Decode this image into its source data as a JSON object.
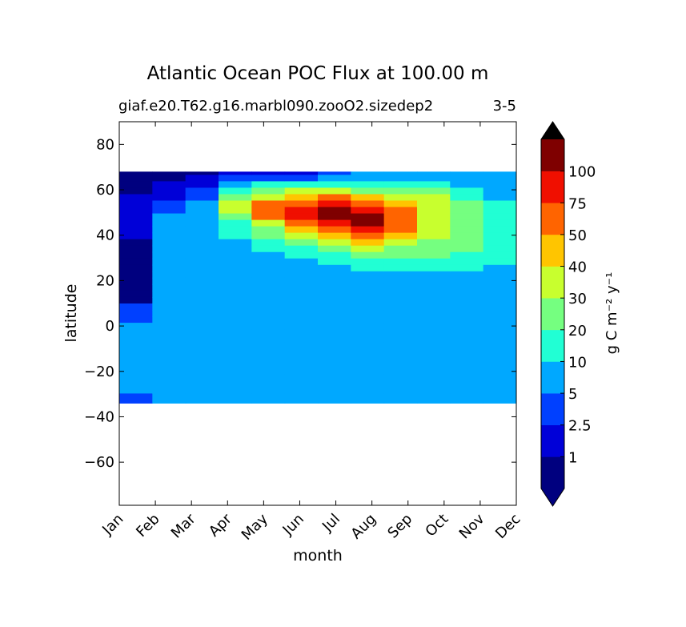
{
  "chart_data": {
    "type": "heatmap",
    "title": "Atlantic Ocean POC Flux at 100.00 m",
    "subtitle_left": "giaf.e20.T62.g16.marbl090.zooO2.sizedep2",
    "subtitle_right": "3-5",
    "xlabel": "month",
    "ylabel": "latitude",
    "x_tick_labels": [
      "Jan",
      "Feb",
      "Mar",
      "Apr",
      "May",
      "Jun",
      "Jul",
      "Aug",
      "Sep",
      "Oct",
      "Nov",
      "Dec"
    ],
    "ylim": [
      -79,
      90
    ],
    "y_ticks": [
      80,
      60,
      40,
      20,
      0,
      -20,
      -40,
      -60
    ],
    "y_tick_labels": [
      "80",
      "60",
      "40",
      "20",
      "0",
      "−20",
      "−40",
      "−60"
    ],
    "data_lat_range": [
      -34,
      68
    ],
    "colorbar": {
      "label": "g C m⁻² y⁻¹",
      "boundary_labels": [
        "1",
        "2.5",
        "5",
        "10",
        "20",
        "30",
        "40",
        "50",
        "75",
        "100"
      ],
      "level_colors": [
        "#00007f",
        "#0000d8",
        "#0040ff",
        "#00a8ff",
        "#21ffd4",
        "#75ff80",
        "#c8ff2e",
        "#ffc500",
        "#ff6400",
        "#f00f00",
        "#7f0000"
      ],
      "under_color": "#00007f",
      "over_color": "#000000"
    },
    "levels_y_by_month": [
      [
        0,
        0,
        0,
        0,
        1,
        1,
        1,
        1,
        1,
        1,
        1,
        0,
        0,
        0,
        0,
        0,
        0,
        0,
        0,
        0,
        0,
        2,
        2,
        2,
        3,
        3,
        3,
        3,
        3,
        3,
        3,
        3,
        3,
        3,
        3,
        2,
        2
      ],
      [
        0,
        0,
        1,
        1,
        1,
        2,
        2,
        3,
        3,
        3,
        3,
        3,
        3,
        3,
        3,
        3,
        3,
        3,
        3,
        3,
        3,
        3,
        3,
        3,
        3,
        3,
        3,
        3,
        3,
        3,
        3,
        3,
        3,
        3,
        3,
        3,
        3
      ],
      [
        0,
        1,
        1,
        2,
        2,
        3,
        3,
        3,
        3,
        3,
        3,
        3,
        3,
        3,
        3,
        3,
        3,
        3,
        3,
        3,
        3,
        3,
        3,
        3,
        3,
        3,
        3,
        3,
        3,
        3,
        3,
        3,
        3,
        3,
        3,
        3,
        3
      ],
      [
        1,
        2,
        3,
        4,
        5,
        6,
        6,
        5,
        4,
        4,
        4,
        3,
        3,
        3,
        3,
        3,
        3,
        3,
        3,
        3,
        3,
        3,
        3,
        3,
        3,
        3,
        3,
        3,
        3,
        3,
        3,
        3,
        3,
        3,
        3,
        3,
        3
      ],
      [
        1,
        2,
        4,
        5,
        6,
        8,
        8,
        8,
        6,
        5,
        5,
        4,
        4,
        3,
        3,
        3,
        3,
        3,
        3,
        3,
        3,
        3,
        3,
        3,
        3,
        3,
        3,
        3,
        3,
        3,
        3,
        3,
        3,
        3,
        3,
        3,
        3
      ],
      [
        1,
        2,
        4,
        6,
        7,
        8,
        9,
        9,
        8,
        7,
        6,
        5,
        4,
        4,
        3,
        3,
        3,
        3,
        3,
        3,
        3,
        3,
        3,
        3,
        3,
        3,
        3,
        3,
        3,
        3,
        3,
        3,
        3,
        3,
        3,
        3,
        3
      ],
      [
        2,
        3,
        4,
        6,
        8,
        9,
        10,
        10,
        9,
        8,
        7,
        6,
        5,
        4,
        4,
        3,
        3,
        3,
        3,
        3,
        3,
        3,
        3,
        3,
        3,
        3,
        3,
        3,
        3,
        3,
        3,
        3,
        3,
        3,
        3,
        3,
        3
      ],
      [
        3,
        3,
        4,
        5,
        7,
        8,
        9,
        10,
        10,
        9,
        8,
        7,
        6,
        5,
        4,
        4,
        3,
        3,
        3,
        3,
        3,
        3,
        3,
        3,
        3,
        3,
        3,
        3,
        3,
        3,
        3,
        3,
        3,
        3,
        3,
        3,
        3
      ],
      [
        3,
        3,
        4,
        5,
        6,
        7,
        8,
        8,
        8,
        8,
        7,
        6,
        5,
        5,
        4,
        4,
        3,
        3,
        3,
        3,
        3,
        3,
        3,
        3,
        3,
        3,
        3,
        3,
        3,
        3,
        3,
        3,
        3,
        3,
        3,
        3,
        3
      ],
      [
        3,
        3,
        4,
        5,
        6,
        6,
        6,
        6,
        6,
        6,
        6,
        5,
        5,
        5,
        4,
        4,
        3,
        3,
        3,
        3,
        3,
        3,
        3,
        3,
        3,
        3,
        3,
        3,
        3,
        3,
        3,
        3,
        3,
        3,
        3,
        3,
        3
      ],
      [
        3,
        3,
        3,
        4,
        4,
        5,
        5,
        5,
        5,
        5,
        5,
        5,
        5,
        4,
        4,
        4,
        3,
        3,
        3,
        3,
        3,
        3,
        3,
        3,
        3,
        3,
        3,
        3,
        3,
        3,
        3,
        3,
        3,
        3,
        3,
        3,
        3
      ],
      [
        3,
        3,
        3,
        3,
        3,
        4,
        4,
        4,
        4,
        4,
        4,
        4,
        4,
        4,
        4,
        3,
        3,
        3,
        3,
        3,
        3,
        3,
        3,
        3,
        3,
        3,
        3,
        3,
        3,
        3,
        3,
        3,
        3,
        3,
        3,
        3,
        3
      ]
    ]
  }
}
